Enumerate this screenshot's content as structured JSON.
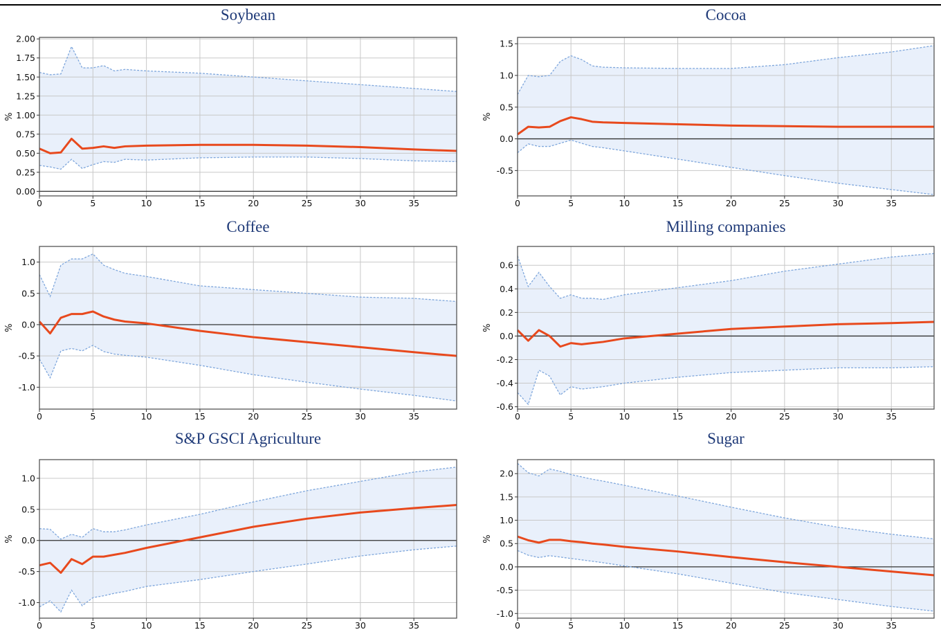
{
  "chart_data": [
    {
      "type": "line",
      "title": "Soybean",
      "xlabel": "",
      "ylabel": "%",
      "xlim": [
        0,
        39
      ],
      "ylim": [
        -0.06,
        2.02
      ],
      "xticks": [
        0,
        5,
        10,
        15,
        20,
        25,
        30,
        35
      ],
      "yticks": [
        0.0,
        0.25,
        0.5,
        0.75,
        1.0,
        1.25,
        1.5,
        1.75,
        2.0
      ],
      "ytick_labels": [
        "0.00",
        "0.25",
        "0.50",
        "0.75",
        "1.00",
        "1.25",
        "1.50",
        "1.75",
        "2.00"
      ],
      "grid": true,
      "zero_line": true,
      "x": [
        0,
        1,
        2,
        3,
        4,
        5,
        6,
        7,
        8,
        10,
        15,
        20,
        25,
        30,
        35,
        39
      ],
      "series": [
        {
          "values": [
            0.56,
            0.5,
            0.51,
            0.69,
            0.56,
            0.57,
            0.59,
            0.57,
            0.59,
            0.6,
            0.61,
            0.61,
            0.6,
            0.58,
            0.55,
            0.53
          ]
        },
        {
          "values": [
            1.56,
            1.53,
            1.54,
            1.9,
            1.62,
            1.62,
            1.65,
            1.58,
            1.6,
            1.58,
            1.55,
            1.5,
            1.45,
            1.4,
            1.35,
            1.31
          ]
        },
        {
          "values": [
            0.34,
            0.32,
            0.29,
            0.42,
            0.3,
            0.35,
            0.39,
            0.38,
            0.42,
            0.41,
            0.44,
            0.45,
            0.45,
            0.43,
            0.4,
            0.39
          ]
        }
      ]
    },
    {
      "type": "line",
      "title": "Cocoa",
      "xlabel": "",
      "ylabel": "%",
      "xlim": [
        0,
        39
      ],
      "ylim": [
        -0.9,
        1.6
      ],
      "xticks": [
        0,
        5,
        10,
        15,
        20,
        25,
        30,
        35
      ],
      "yticks": [
        -0.5,
        0.0,
        0.5,
        1.0,
        1.5
      ],
      "ytick_labels": [
        "-0.5",
        "0.0",
        "0.5",
        "1.0",
        "1.5"
      ],
      "grid": true,
      "zero_line": true,
      "x": [
        0,
        1,
        2,
        3,
        4,
        5,
        6,
        7,
        8,
        10,
        15,
        20,
        25,
        30,
        35,
        39
      ],
      "series": [
        {
          "values": [
            0.07,
            0.19,
            0.18,
            0.19,
            0.28,
            0.34,
            0.31,
            0.27,
            0.26,
            0.25,
            0.23,
            0.21,
            0.2,
            0.19,
            0.19,
            0.19
          ]
        },
        {
          "values": [
            0.7,
            1.0,
            0.98,
            1.0,
            1.22,
            1.31,
            1.25,
            1.15,
            1.13,
            1.12,
            1.11,
            1.11,
            1.17,
            1.28,
            1.37,
            1.47
          ]
        },
        {
          "values": [
            -0.22,
            -0.08,
            -0.12,
            -0.12,
            -0.07,
            -0.02,
            -0.07,
            -0.12,
            -0.14,
            -0.19,
            -0.32,
            -0.45,
            -0.58,
            -0.7,
            -0.8,
            -0.88
          ]
        }
      ]
    },
    {
      "type": "line",
      "title": "Coffee",
      "xlabel": "",
      "ylabel": "%",
      "xlim": [
        0,
        39
      ],
      "ylim": [
        -1.35,
        1.25
      ],
      "xticks": [
        0,
        5,
        10,
        15,
        20,
        25,
        30,
        35
      ],
      "yticks": [
        -1.0,
        -0.5,
        0.0,
        0.5,
        1.0
      ],
      "ytick_labels": [
        "-1.0",
        "-0.5",
        "0.0",
        "0.5",
        "1.0"
      ],
      "grid": true,
      "zero_line": true,
      "x": [
        0,
        1,
        2,
        3,
        4,
        5,
        6,
        7,
        8,
        10,
        15,
        20,
        25,
        30,
        35,
        39
      ],
      "series": [
        {
          "values": [
            0.05,
            -0.14,
            0.11,
            0.17,
            0.17,
            0.21,
            0.13,
            0.08,
            0.05,
            0.02,
            -0.1,
            -0.2,
            -0.28,
            -0.36,
            -0.44,
            -0.5
          ]
        },
        {
          "values": [
            0.8,
            0.45,
            0.95,
            1.05,
            1.05,
            1.13,
            0.95,
            0.88,
            0.82,
            0.77,
            0.62,
            0.56,
            0.5,
            0.44,
            0.42,
            0.37
          ]
        },
        {
          "values": [
            -0.55,
            -0.85,
            -0.42,
            -0.38,
            -0.42,
            -0.33,
            -0.43,
            -0.47,
            -0.49,
            -0.52,
            -0.65,
            -0.8,
            -0.92,
            -1.03,
            -1.13,
            -1.22
          ]
        }
      ]
    },
    {
      "type": "line",
      "title": "Milling companies",
      "xlabel": "",
      "ylabel": "%",
      "xlim": [
        0,
        39
      ],
      "ylim": [
        -0.62,
        0.76
      ],
      "xticks": [
        0,
        5,
        10,
        15,
        20,
        25,
        30,
        35
      ],
      "yticks": [
        -0.6,
        -0.4,
        -0.2,
        0.0,
        0.2,
        0.4,
        0.6
      ],
      "ytick_labels": [
        "-0.6",
        "-0.4",
        "-0.2",
        "0.0",
        "0.2",
        "0.4",
        "0.6"
      ],
      "grid": true,
      "zero_line": true,
      "x": [
        0,
        1,
        2,
        3,
        4,
        5,
        6,
        7,
        8,
        10,
        15,
        20,
        25,
        30,
        35,
        39
      ],
      "series": [
        {
          "values": [
            0.05,
            -0.04,
            0.05,
            0.0,
            -0.09,
            -0.06,
            -0.07,
            -0.06,
            -0.05,
            -0.02,
            0.02,
            0.06,
            0.08,
            0.1,
            0.11,
            0.12
          ]
        },
        {
          "values": [
            0.68,
            0.42,
            0.54,
            0.42,
            0.32,
            0.35,
            0.32,
            0.32,
            0.31,
            0.35,
            0.41,
            0.47,
            0.55,
            0.61,
            0.67,
            0.7
          ]
        },
        {
          "values": [
            -0.48,
            -0.58,
            -0.29,
            -0.34,
            -0.5,
            -0.43,
            -0.45,
            -0.44,
            -0.43,
            -0.4,
            -0.35,
            -0.31,
            -0.29,
            -0.27,
            -0.27,
            -0.26
          ]
        }
      ]
    },
    {
      "type": "line",
      "title": "S&P GSCI Agriculture",
      "xlabel": "",
      "ylabel": "%",
      "xlim": [
        0,
        39
      ],
      "ylim": [
        -1.25,
        1.3
      ],
      "xticks": [
        0,
        5,
        10,
        15,
        20,
        25,
        30,
        35
      ],
      "yticks": [
        -1.0,
        -0.5,
        0.0,
        0.5,
        1.0
      ],
      "ytick_labels": [
        "-1.0",
        "-0.5",
        "0.0",
        "0.5",
        "1.0"
      ],
      "grid": true,
      "zero_line": true,
      "x": [
        0,
        1,
        2,
        3,
        4,
        5,
        6,
        7,
        8,
        10,
        15,
        20,
        25,
        30,
        35,
        39
      ],
      "series": [
        {
          "values": [
            -0.4,
            -0.36,
            -0.52,
            -0.3,
            -0.38,
            -0.26,
            -0.26,
            -0.23,
            -0.2,
            -0.12,
            0.05,
            0.22,
            0.35,
            0.45,
            0.52,
            0.57
          ]
        },
        {
          "values": [
            0.19,
            0.18,
            0.02,
            0.1,
            0.05,
            0.19,
            0.14,
            0.14,
            0.17,
            0.25,
            0.42,
            0.62,
            0.8,
            0.95,
            1.1,
            1.18
          ]
        },
        {
          "values": [
            -1.07,
            -0.97,
            -1.15,
            -0.8,
            -1.05,
            -0.92,
            -0.89,
            -0.85,
            -0.82,
            -0.74,
            -0.63,
            -0.5,
            -0.38,
            -0.25,
            -0.15,
            -0.09
          ]
        }
      ]
    },
    {
      "type": "line",
      "title": "Sugar",
      "xlabel": "",
      "ylabel": "%",
      "xlim": [
        0,
        39
      ],
      "ylim": [
        -1.1,
        2.3
      ],
      "xticks": [
        0,
        5,
        10,
        15,
        20,
        25,
        30,
        35
      ],
      "yticks": [
        -1.0,
        -0.5,
        0.0,
        0.5,
        1.0,
        1.5,
        2.0
      ],
      "ytick_labels": [
        "-1.0",
        "-0.5",
        "0.0",
        "0.5",
        "1.0",
        "1.5",
        "2.0"
      ],
      "grid": true,
      "zero_line": true,
      "x": [
        0,
        1,
        2,
        3,
        4,
        5,
        6,
        7,
        8,
        10,
        15,
        20,
        25,
        30,
        35,
        39
      ],
      "series": [
        {
          "values": [
            0.65,
            0.57,
            0.52,
            0.58,
            0.58,
            0.55,
            0.53,
            0.5,
            0.48,
            0.43,
            0.33,
            0.21,
            0.1,
            0.0,
            -0.1,
            -0.18
          ]
        },
        {
          "values": [
            2.22,
            2.02,
            1.95,
            2.1,
            2.05,
            1.98,
            1.93,
            1.88,
            1.84,
            1.75,
            1.52,
            1.28,
            1.05,
            0.85,
            0.7,
            0.6
          ]
        },
        {
          "values": [
            0.35,
            0.25,
            0.2,
            0.24,
            0.21,
            0.18,
            0.15,
            0.12,
            0.09,
            0.02,
            -0.15,
            -0.35,
            -0.55,
            -0.7,
            -0.85,
            -0.95
          ]
        }
      ]
    }
  ],
  "style": {
    "irf_color": "#e8491d",
    "band_line_color": "#7fa7dc",
    "band_fill_color": "#e9f0fb",
    "grid_color": "#c8c8c8",
    "zero_color": "#333333",
    "title_color": "#1f3a78"
  }
}
